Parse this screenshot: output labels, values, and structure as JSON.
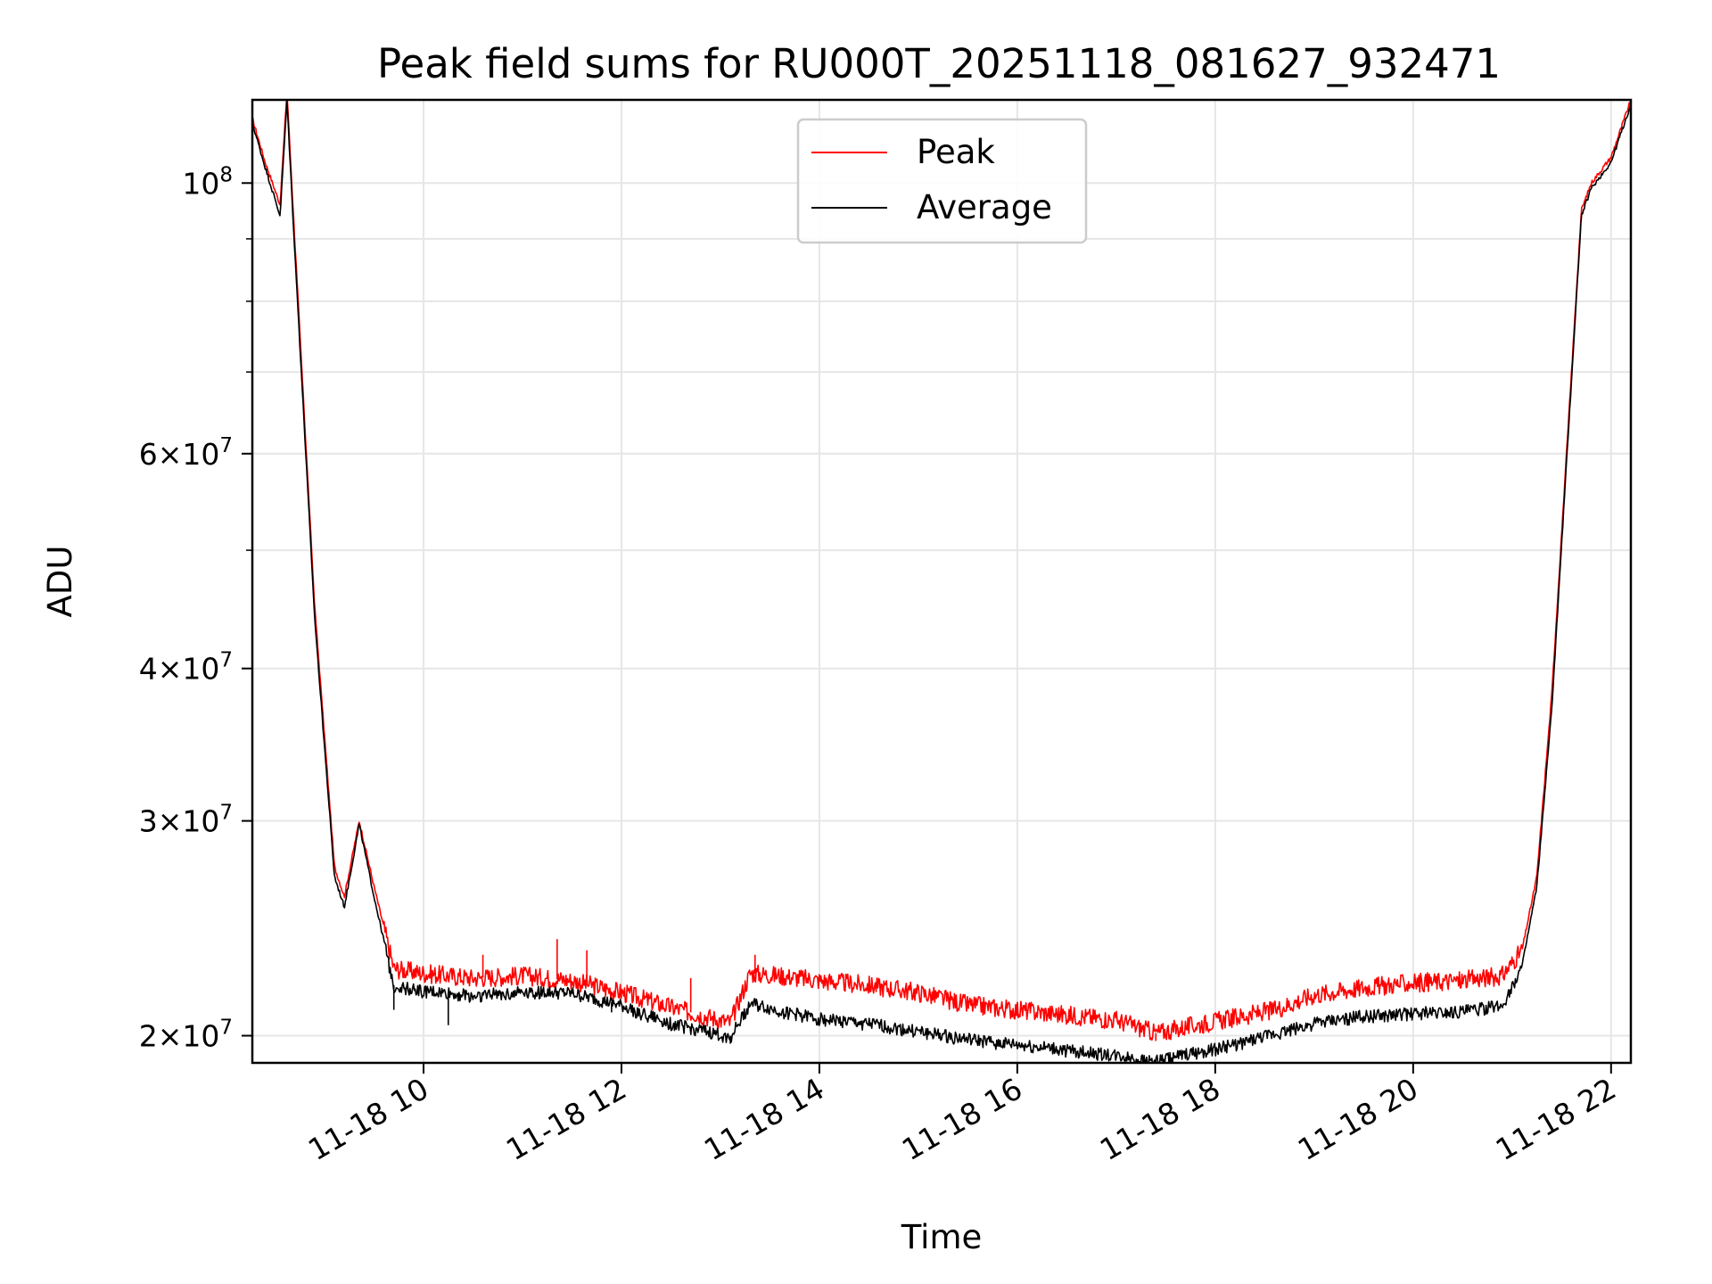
{
  "chart_data": {
    "type": "line",
    "title": "Peak field sums for RU000T_20251118_081627_932471",
    "xlabel": "Time",
    "ylabel": "ADU",
    "yscale": "log",
    "grid": true,
    "legend_position": "upper-center",
    "x_range_hours": [
      8.27,
      22.2
    ],
    "ylim": [
      19000000,
      117000000
    ],
    "x_ticks": [
      {
        "hour": 10,
        "label": "11-18 10"
      },
      {
        "hour": 12,
        "label": "11-18 12"
      },
      {
        "hour": 14,
        "label": "11-18 14"
      },
      {
        "hour": 16,
        "label": "11-18 16"
      },
      {
        "hour": 18,
        "label": "11-18 18"
      },
      {
        "hour": 20,
        "label": "11-18 20"
      },
      {
        "hour": 22,
        "label": "11-18 22"
      }
    ],
    "y_major_ticks": [
      {
        "value": 20000000,
        "mantissa": "2",
        "exp": "7"
      },
      {
        "value": 30000000,
        "mantissa": "3",
        "exp": "7"
      },
      {
        "value": 40000000,
        "mantissa": "4",
        "exp": "7"
      },
      {
        "value": 60000000,
        "mantissa": "6",
        "exp": "7"
      },
      {
        "value": 100000000,
        "mantissa": "",
        "exp": "8"
      }
    ],
    "y_minor_ticks": [
      50000000,
      70000000,
      80000000,
      90000000
    ],
    "series": [
      {
        "name": "Peak",
        "color": "#ff0000",
        "x": [
          8.27,
          8.4,
          8.55,
          8.62,
          8.68,
          8.9,
          9.1,
          9.2,
          9.35,
          9.5,
          9.7,
          10.0,
          10.5,
          11.0,
          11.5,
          12.0,
          12.5,
          13.1,
          13.3,
          13.6,
          14.0,
          14.5,
          15.0,
          15.5,
          16.0,
          16.5,
          17.0,
          17.4,
          17.8,
          18.2,
          18.6,
          19.0,
          19.5,
          20.0,
          20.5,
          20.9,
          21.1,
          21.25,
          21.4,
          21.55,
          21.7,
          21.8,
          22.0,
          22.2
        ],
        "values": [
          113000000,
          104000000,
          96000000,
          119000000,
          96000000,
          45000000,
          27500000,
          26000000,
          30000000,
          26500000,
          22700000,
          22500000,
          22300000,
          22400000,
          22200000,
          21700000,
          21100000,
          20500000,
          22500000,
          22400000,
          22200000,
          22000000,
          21700000,
          21200000,
          21000000,
          20800000,
          20600000,
          20100000,
          20400000,
          20700000,
          21000000,
          21600000,
          21900000,
          22100000,
          22200000,
          22400000,
          23500000,
          27000000,
          38000000,
          60000000,
          95000000,
          100000000,
          105000000,
          117000000
        ],
        "spikes": [
          {
            "x": 10.6,
            "value": 23300000
          },
          {
            "x": 11.35,
            "value": 24000000
          },
          {
            "x": 11.65,
            "value": 23500000
          },
          {
            "x": 12.7,
            "value": 22300000
          },
          {
            "x": 13.35,
            "value": 23300000
          },
          {
            "x": 17.4,
            "value": 19800000
          }
        ]
      },
      {
        "name": "Average",
        "color": "#000000",
        "x": [
          8.27,
          8.4,
          8.55,
          8.62,
          8.68,
          8.9,
          9.1,
          9.2,
          9.35,
          9.5,
          9.7,
          10.0,
          10.5,
          11.0,
          11.5,
          12.0,
          12.5,
          13.1,
          13.3,
          13.6,
          14.0,
          14.5,
          15.0,
          15.5,
          16.0,
          16.5,
          17.0,
          17.4,
          17.8,
          18.2,
          18.6,
          19.0,
          19.5,
          20.0,
          20.5,
          20.9,
          21.1,
          21.25,
          21.4,
          21.55,
          21.7,
          21.8,
          22.0,
          22.2
        ],
        "values": [
          112000000,
          103000000,
          94000000,
          117000000,
          94000000,
          44000000,
          27000000,
          25500000,
          29800000,
          26000000,
          22000000,
          21800000,
          21600000,
          21800000,
          21700000,
          21200000,
          20500000,
          20000000,
          21300000,
          21000000,
          20700000,
          20500000,
          20200000,
          19900000,
          19700000,
          19500000,
          19300000,
          19100000,
          19400000,
          19700000,
          20100000,
          20500000,
          20800000,
          20900000,
          21000000,
          21200000,
          22800000,
          26500000,
          37000000,
          59000000,
          94000000,
          99000000,
          104000000,
          116000000
        ],
        "dips": [
          {
            "x": 9.7,
            "value": 21000000
          },
          {
            "x": 10.25,
            "value": 20400000
          },
          {
            "x": 11.9,
            "value": 20900000
          },
          {
            "x": 13.1,
            "value": 19700000
          },
          {
            "x": 17.4,
            "value": 18900000
          }
        ]
      }
    ]
  }
}
